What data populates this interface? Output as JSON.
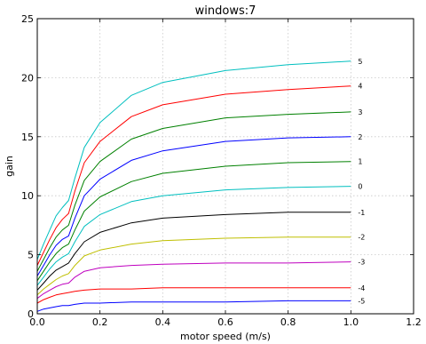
{
  "chart_data": {
    "type": "line",
    "title": "windows:7",
    "xlabel": "motor speed (m/s)",
    "ylabel": "gain",
    "xlim": [
      0,
      1.2
    ],
    "ylim": [
      0,
      25
    ],
    "xticks": [
      0.0,
      0.2,
      0.4,
      0.6,
      0.8,
      1.0,
      1.2
    ],
    "xtick_labels": [
      "0.0",
      "0.2",
      "0.4",
      "0.6",
      "0.8",
      "1.0",
      "1.2"
    ],
    "yticks": [
      0,
      5,
      10,
      15,
      20,
      25
    ],
    "ytick_labels": [
      "0",
      "5",
      "10",
      "15",
      "20",
      "25"
    ],
    "grid": true,
    "x": [
      0.0,
      0.02,
      0.04,
      0.06,
      0.08,
      0.1,
      0.12,
      0.15,
      0.2,
      0.3,
      0.4,
      0.6,
      0.8,
      1.0
    ],
    "series": [
      {
        "name": "5",
        "color": "#00bfbf",
        "values": [
          4.6,
          5.9,
          7.1,
          8.3,
          9.0,
          9.6,
          11.5,
          14.1,
          16.2,
          18.5,
          19.6,
          20.6,
          21.1,
          21.4
        ]
      },
      {
        "name": "4",
        "color": "#ff0000",
        "values": [
          4.1,
          5.2,
          6.3,
          7.3,
          8.0,
          8.5,
          10.4,
          12.8,
          14.6,
          16.7,
          17.7,
          18.6,
          19.0,
          19.3
        ]
      },
      {
        "name": "3",
        "color": "#008000",
        "values": [
          3.6,
          4.6,
          5.6,
          6.5,
          7.1,
          7.5,
          9.2,
          11.3,
          12.9,
          14.8,
          15.7,
          16.6,
          16.9,
          17.1
        ]
      },
      {
        "name": "2",
        "color": "#0000ff",
        "values": [
          3.2,
          4.1,
          5.0,
          5.8,
          6.3,
          6.6,
          8.1,
          10.0,
          11.4,
          13.0,
          13.8,
          14.6,
          14.9,
          15.0
        ]
      },
      {
        "name": "1",
        "color": "#008000",
        "values": [
          2.8,
          3.6,
          4.4,
          5.1,
          5.6,
          5.9,
          7.1,
          8.7,
          9.9,
          11.2,
          11.9,
          12.5,
          12.8,
          12.9
        ]
      },
      {
        "name": "0",
        "color": "#00bfbf",
        "values": [
          2.4,
          3.1,
          3.8,
          4.4,
          4.8,
          5.1,
          6.1,
          7.4,
          8.4,
          9.5,
          10.0,
          10.5,
          10.7,
          10.8
        ]
      },
      {
        "name": "-1",
        "color": "#000000",
        "values": [
          2.0,
          2.6,
          3.2,
          3.7,
          4.0,
          4.3,
          5.1,
          6.1,
          6.9,
          7.7,
          8.1,
          8.4,
          8.6,
          8.6
        ]
      },
      {
        "name": "-2",
        "color": "#bfbf00",
        "values": [
          1.6,
          2.1,
          2.5,
          2.9,
          3.2,
          3.4,
          4.1,
          4.9,
          5.4,
          5.9,
          6.2,
          6.4,
          6.5,
          6.5
        ]
      },
      {
        "name": "-3",
        "color": "#bf00bf",
        "values": [
          1.3,
          1.7,
          2.0,
          2.3,
          2.5,
          2.6,
          3.1,
          3.6,
          3.9,
          4.1,
          4.2,
          4.3,
          4.3,
          4.4
        ]
      },
      {
        "name": "-4",
        "color": "#ff0000",
        "values": [
          0.9,
          1.2,
          1.4,
          1.6,
          1.7,
          1.8,
          1.9,
          2.0,
          2.1,
          2.1,
          2.2,
          2.2,
          2.2,
          2.2
        ]
      },
      {
        "name": "-5",
        "color": "#0000ff",
        "values": [
          0.2,
          0.4,
          0.5,
          0.6,
          0.7,
          0.7,
          0.8,
          0.9,
          0.9,
          1.0,
          1.0,
          1.0,
          1.1,
          1.1
        ]
      }
    ]
  }
}
